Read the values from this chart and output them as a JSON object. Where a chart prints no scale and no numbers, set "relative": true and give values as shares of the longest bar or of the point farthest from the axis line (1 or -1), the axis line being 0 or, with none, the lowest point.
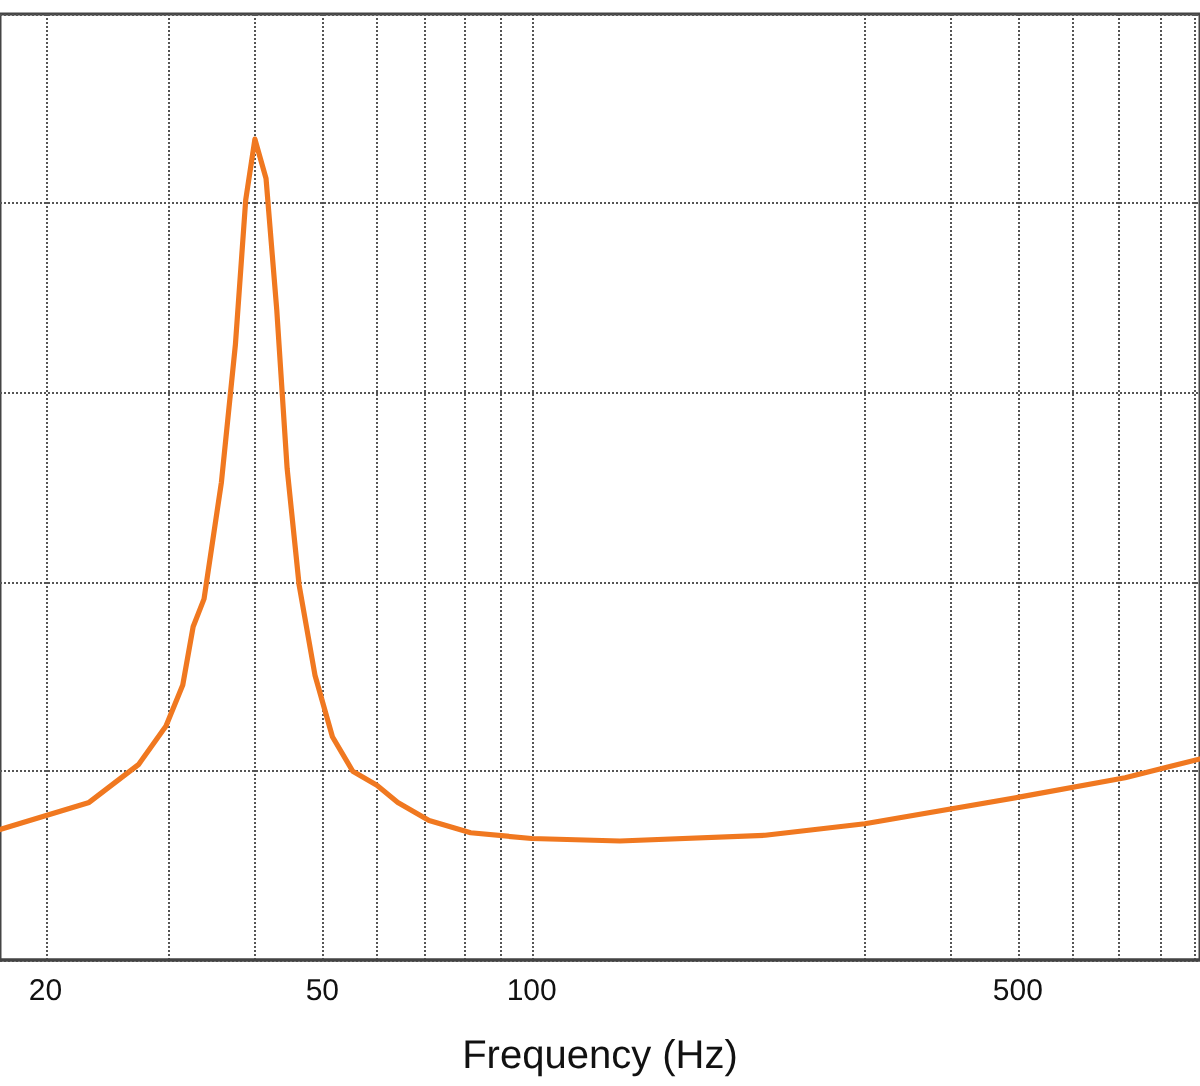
{
  "chart_data": {
    "type": "line",
    "xlabel": "Frequency (Hz)",
    "relative": true,
    "log": "x",
    "grid": true,
    "marker": "none",
    "line_style": "solid",
    "xlim": [
      17.2,
      914
    ],
    "xticks": [
      20,
      {
        "value": 30,
        "label": null
      },
      {
        "value": 40,
        "label": null
      },
      50,
      {
        "value": 60,
        "label": null
      },
      {
        "value": 70,
        "label": null
      },
      {
        "value": 80,
        "label": null
      },
      {
        "value": 90,
        "label": null
      },
      100,
      {
        "value": 300,
        "label": null
      },
      {
        "value": 400,
        "label": null
      },
      500,
      {
        "value": 600,
        "label": null
      },
      {
        "value": 700,
        "label": null
      },
      {
        "value": 800,
        "label": null
      },
      {
        "value": 900,
        "label": null
      }
    ],
    "series": [
      {
        "color": "#f07820",
        "x": [
          17.2,
          23.1,
          27.2,
          29.8,
          31.5,
          32.6,
          33.8,
          35.8,
          37.5,
          38.8,
          40,
          41.5,
          43,
          44.5,
          46.3,
          48.8,
          51.7,
          55.3,
          59.9,
          64.2,
          71.2,
          81.7,
          100,
          133.9,
          216.7,
          301.3,
          506.4,
          713.3,
          914
        ],
        "values": [
          0.159,
          0.192,
          0.238,
          0.285,
          0.335,
          0.406,
          0.44,
          0.582,
          0.75,
          0.926,
          1,
          0.952,
          0.792,
          0.599,
          0.457,
          0.347,
          0.272,
          0.23,
          0.213,
          0.192,
          0.17,
          0.155,
          0.148,
          0.145,
          0.152,
          0.166,
          0.199,
          0.222,
          0.245
        ]
      }
    ]
  }
}
